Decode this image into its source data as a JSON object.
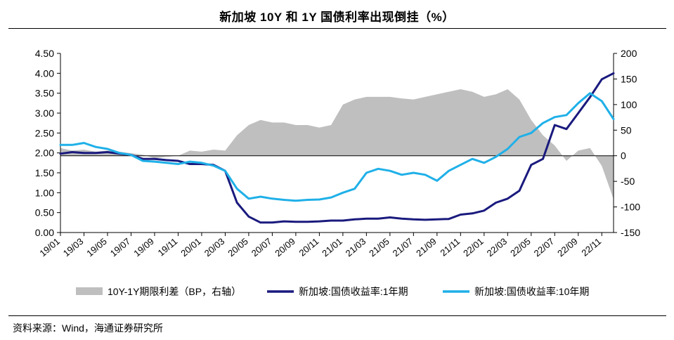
{
  "title": "新加坡 10Y 和 1Y 国债利率出现倒挂（%）",
  "source": "资料来源：Wind，海通证券研究所",
  "chart_data": {
    "type": "line",
    "title": "新加坡 10Y 和 1Y 国债利率出现倒挂（%）",
    "x_tick_labels": [
      "19/01",
      "19/03",
      "19/05",
      "19/07",
      "19/09",
      "19/11",
      "20/01",
      "20/03",
      "20/05",
      "20/07",
      "20/09",
      "20/11",
      "21/01",
      "21/03",
      "21/05",
      "21/07",
      "21/09",
      "21/11",
      "22/01",
      "22/03",
      "22/05",
      "22/07",
      "22/09",
      "22/11"
    ],
    "xlim": [
      "2019-01",
      "2022-12"
    ],
    "y_left": {
      "lim": [
        0,
        4.5
      ],
      "ticks": [
        "0.00",
        "0.50",
        "1.00",
        "1.50",
        "2.00",
        "2.50",
        "3.00",
        "3.50",
        "4.00",
        "4.50"
      ]
    },
    "y_right": {
      "lim": [
        -150,
        200
      ],
      "ticks": [
        "-150",
        "-100",
        "-50",
        "0",
        "50",
        "100",
        "150",
        "200"
      ]
    },
    "grid": false,
    "legend_position": "bottom",
    "series": [
      {
        "name": "10Y-1Y期限利差（BP，右轴）",
        "kind": "area",
        "axis": "right",
        "color": "#bfbfbf",
        "x": [
          "2019-01",
          "2019-02",
          "2019-03",
          "2019-04",
          "2019-05",
          "2019-06",
          "2019-07",
          "2019-08",
          "2019-09",
          "2019-10",
          "2019-11",
          "2019-12",
          "2020-01",
          "2020-02",
          "2020-03",
          "2020-04",
          "2020-05",
          "2020-06",
          "2020-07",
          "2020-08",
          "2020-09",
          "2020-10",
          "2020-11",
          "2020-12",
          "2021-01",
          "2021-02",
          "2021-03",
          "2021-04",
          "2021-05",
          "2021-06",
          "2021-07",
          "2021-08",
          "2021-09",
          "2021-10",
          "2021-11",
          "2021-12",
          "2022-01",
          "2022-02",
          "2022-03",
          "2022-04",
          "2022-05",
          "2022-06",
          "2022-07",
          "2022-08",
          "2022-09",
          "2022-10",
          "2022-11",
          "2022-12"
        ],
        "values": [
          15,
          10,
          12,
          8,
          10,
          8,
          5,
          2,
          -5,
          -2,
          0,
          10,
          8,
          12,
          10,
          40,
          60,
          70,
          65,
          65,
          60,
          60,
          55,
          60,
          100,
          110,
          115,
          115,
          115,
          112,
          110,
          115,
          120,
          125,
          130,
          125,
          115,
          120,
          130,
          110,
          70,
          40,
          20,
          -10,
          10,
          15,
          -20,
          -85
        ]
      },
      {
        "name": "新加坡:国债收益率:1年期",
        "kind": "line",
        "axis": "left",
        "color": "#1a1a7e",
        "x": [
          "2019-01",
          "2019-02",
          "2019-03",
          "2019-04",
          "2019-05",
          "2019-06",
          "2019-07",
          "2019-08",
          "2019-09",
          "2019-10",
          "2019-11",
          "2019-12",
          "2020-01",
          "2020-02",
          "2020-03",
          "2020-04",
          "2020-05",
          "2020-06",
          "2020-07",
          "2020-08",
          "2020-09",
          "2020-10",
          "2020-11",
          "2020-12",
          "2021-01",
          "2021-02",
          "2021-03",
          "2021-04",
          "2021-05",
          "2021-06",
          "2021-07",
          "2021-08",
          "2021-09",
          "2021-10",
          "2021-11",
          "2021-12",
          "2022-01",
          "2022-02",
          "2022-03",
          "2022-04",
          "2022-05",
          "2022-06",
          "2022-07",
          "2022-08",
          "2022-09",
          "2022-10",
          "2022-11",
          "2022-12"
        ],
        "values": [
          1.98,
          2.02,
          2.0,
          2.0,
          2.02,
          1.98,
          1.95,
          1.85,
          1.85,
          1.82,
          1.8,
          1.72,
          1.72,
          1.7,
          1.55,
          0.75,
          0.4,
          0.25,
          0.25,
          0.28,
          0.27,
          0.27,
          0.28,
          0.3,
          0.3,
          0.33,
          0.35,
          0.35,
          0.38,
          0.35,
          0.33,
          0.32,
          0.33,
          0.34,
          0.45,
          0.48,
          0.55,
          0.75,
          0.85,
          1.05,
          1.7,
          1.85,
          2.7,
          2.6,
          3.0,
          3.4,
          3.85,
          4.0
        ]
      },
      {
        "name": "新加坡:国债收益率:10年期",
        "kind": "line",
        "axis": "left",
        "color": "#1fb0e8",
        "x": [
          "2019-01",
          "2019-02",
          "2019-03",
          "2019-04",
          "2019-05",
          "2019-06",
          "2019-07",
          "2019-08",
          "2019-09",
          "2019-10",
          "2019-11",
          "2019-12",
          "2020-01",
          "2020-02",
          "2020-03",
          "2020-04",
          "2020-05",
          "2020-06",
          "2020-07",
          "2020-08",
          "2020-09",
          "2020-10",
          "2020-11",
          "2020-12",
          "2021-01",
          "2021-02",
          "2021-03",
          "2021-04",
          "2021-05",
          "2021-06",
          "2021-07",
          "2021-08",
          "2021-09",
          "2021-10",
          "2021-11",
          "2021-12",
          "2022-01",
          "2022-02",
          "2022-03",
          "2022-04",
          "2022-05",
          "2022-06",
          "2022-07",
          "2022-08",
          "2022-09",
          "2022-10",
          "2022-11",
          "2022-12"
        ],
        "values": [
          2.2,
          2.2,
          2.25,
          2.15,
          2.1,
          2.0,
          1.95,
          1.8,
          1.78,
          1.75,
          1.72,
          1.78,
          1.75,
          1.68,
          1.55,
          1.1,
          0.85,
          0.9,
          0.85,
          0.82,
          0.8,
          0.82,
          0.83,
          0.88,
          1.0,
          1.1,
          1.5,
          1.6,
          1.55,
          1.45,
          1.5,
          1.45,
          1.3,
          1.55,
          1.7,
          1.85,
          1.75,
          1.9,
          2.1,
          2.4,
          2.5,
          2.75,
          2.9,
          2.95,
          3.25,
          3.5,
          3.3,
          2.85
        ]
      }
    ]
  }
}
